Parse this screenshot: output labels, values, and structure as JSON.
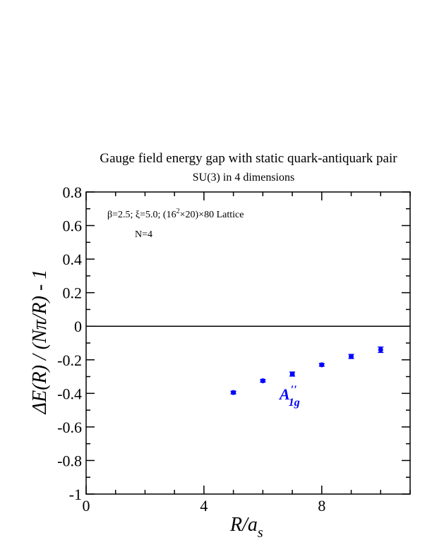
{
  "chart_data": {
    "type": "scatter",
    "title": "Gauge field energy gap with static quark-antiquark pair",
    "subtitle": "SU(3) in 4 dimensions",
    "xlabel": "R/a_s",
    "ylabel": "ΔE(R) / (Nπ/R) - 1",
    "xlim": [
      0,
      11
    ],
    "ylim": [
      -1,
      0.8
    ],
    "x_ticks": [
      "0",
      "4",
      "8"
    ],
    "y_ticks": [
      "0.8",
      "0.6",
      "0.4",
      "0.2",
      "0",
      "-0.2",
      "-0.4",
      "-0.6",
      "-0.8",
      "-1"
    ],
    "grid": false,
    "reference_line_y": 0,
    "annotations": {
      "params": "β=2.5; ξ=5.0; (16²×20)×80 Lattice",
      "n_label": "N=4"
    },
    "series": [
      {
        "name": "A''1g",
        "color": "#0000ff",
        "x": [
          5,
          6,
          7,
          8,
          9,
          10
        ],
        "y": [
          -0.395,
          -0.325,
          -0.285,
          -0.23,
          -0.18,
          -0.14
        ],
        "err": [
          0.008,
          0.008,
          0.012,
          0.008,
          0.012,
          0.016
        ]
      }
    ]
  }
}
